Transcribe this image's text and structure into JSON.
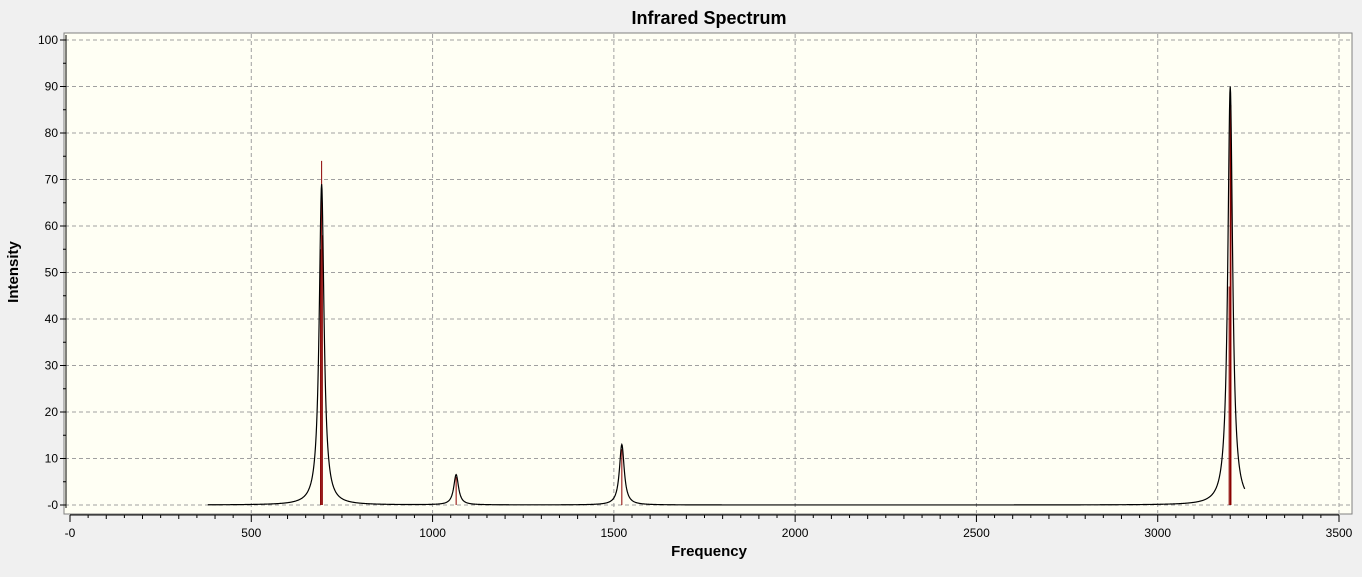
{
  "window": {
    "background": "#f0f0f0",
    "plot_background": "#fffff4"
  },
  "chart_data": {
    "type": "line",
    "title": "Infrared Spectrum",
    "xlabel": "Frequency",
    "ylabel": "Intensity",
    "xlim": [
      0,
      3500
    ],
    "ylim": [
      0,
      100
    ],
    "x_ticks": [
      0,
      500,
      1000,
      1500,
      2000,
      2500,
      3000,
      3500
    ],
    "x_tick_labels": [
      "-0",
      "500",
      "1000",
      "1500",
      "2000",
      "2500",
      "3000",
      "3500"
    ],
    "y_ticks": [
      0,
      10,
      20,
      30,
      40,
      50,
      60,
      70,
      80,
      90,
      100
    ],
    "y_tick_labels": [
      "-0",
      "10",
      "20",
      "30",
      "40",
      "50",
      "60",
      "70",
      "80",
      "90",
      "100"
    ],
    "grid": true,
    "x_range": [
      380,
      3240
    ],
    "peaks": [
      {
        "x": 694,
        "spectrum_height": 69,
        "stick": 74
      },
      {
        "x": 1065,
        "spectrum_height": 6.5,
        "stick": 6
      },
      {
        "x": 1522,
        "spectrum_height": 13,
        "stick": 12
      },
      {
        "x": 3200,
        "spectrum_height": 90,
        "stick": 89
      }
    ],
    "sticks_extra": [
      {
        "x": 691,
        "value": 55
      },
      {
        "x": 696,
        "value": 58
      },
      {
        "x": 3197,
        "value": 47
      },
      {
        "x": 3202,
        "value": 86
      }
    ],
    "series": [
      {
        "color": "#000000"
      },
      {
        "color": "#8b0000"
      }
    ],
    "tick_color": "#000000",
    "grid_color": "#a0a0a0"
  }
}
